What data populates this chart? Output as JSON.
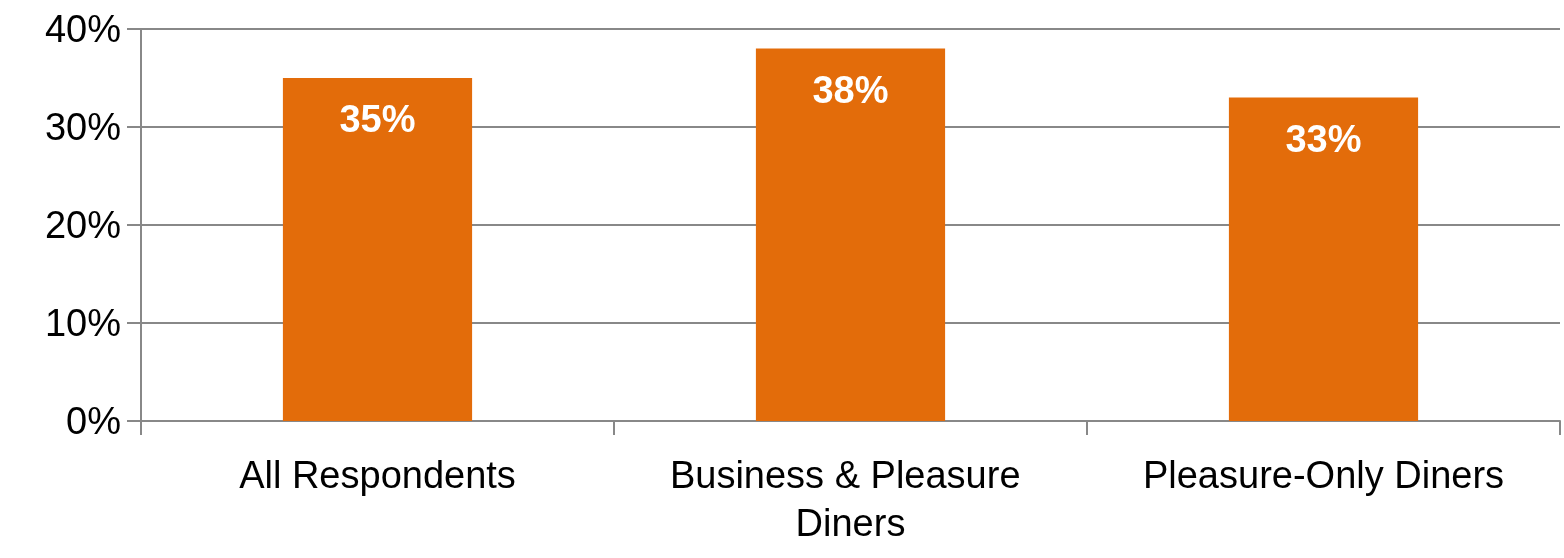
{
  "chart_data": {
    "type": "bar",
    "categories": [
      "All Respondents",
      "Business & Pleasure Diners",
      "Pleasure-Only Diners"
    ],
    "values": [
      35,
      38,
      33
    ],
    "color": "#e36c0a",
    "value_labels": [
      "35%",
      "38%",
      "33%"
    ],
    "ylim": [
      0,
      40
    ],
    "yticks": [
      {
        "value": 0,
        "label": "0%"
      },
      {
        "value": 10,
        "label": "10%"
      },
      {
        "value": 20,
        "label": "20%"
      },
      {
        "value": 30,
        "label": "30%"
      },
      {
        "value": 40,
        "label": "40%"
      }
    ],
    "grid": "y"
  }
}
